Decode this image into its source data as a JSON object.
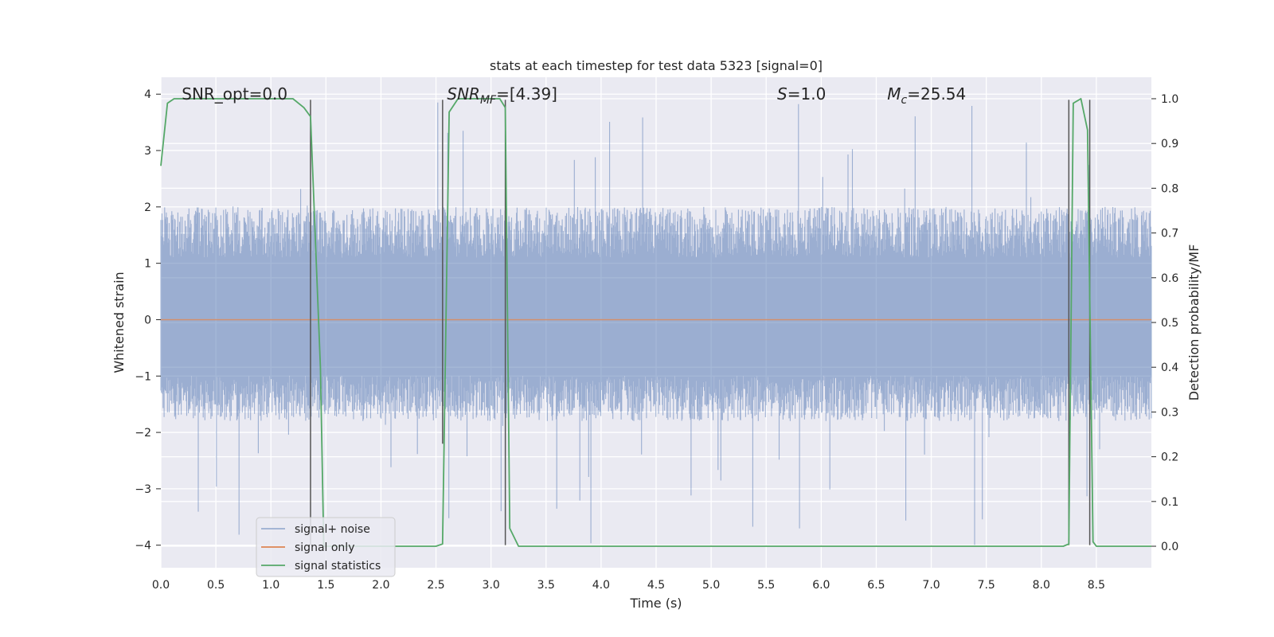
{
  "chart_data": {
    "type": "line",
    "title": "stats at each timestep for test data 5323 [signal=0]",
    "xlabel": "Time (s)",
    "ylabel": "Whitened strain",
    "ylabel_right": "Detection probability/MF",
    "xlim": [
      0.0,
      9.0
    ],
    "ylim": [
      -4.4,
      4.3
    ],
    "ylim_right": [
      -0.048,
      1.048
    ],
    "xticks": [
      0.0,
      0.5,
      1.0,
      1.5,
      2.0,
      2.5,
      3.0,
      3.5,
      4.0,
      4.5,
      5.0,
      5.5,
      6.0,
      6.5,
      7.0,
      7.5,
      8.0,
      8.5
    ],
    "yticks": [
      -4,
      -3,
      -2,
      -1,
      0,
      1,
      2,
      3,
      4
    ],
    "yticks_right": [
      0.0,
      0.1,
      0.2,
      0.3,
      0.4,
      0.5,
      0.6,
      0.7,
      0.8,
      0.9,
      1.0
    ],
    "annotations": [
      {
        "text": "SNR_opt=0.0",
        "x": 0.19,
        "y": 4.0
      },
      {
        "text": "SNR",
        "sub": "MF",
        "suffix": "=[4.39]",
        "italic": true,
        "x": 2.6,
        "y": 4.0
      },
      {
        "text": "S",
        "suffix": "=1.0",
        "italic": true,
        "x": 5.6,
        "y": 4.0
      },
      {
        "text": "M",
        "sub": "c",
        "suffix": "=25.54",
        "italic": true,
        "x": 6.6,
        "y": 4.0
      }
    ],
    "vlines": [
      {
        "x": 1.36,
        "ymin": -4.0,
        "ymax": 3.9
      },
      {
        "x": 2.56,
        "ymin": -2.2,
        "ymax": 3.9
      },
      {
        "x": 3.13,
        "ymin": -4.0,
        "ymax": 3.9
      },
      {
        "x": 8.25,
        "ymin": -4.0,
        "ymax": 3.9
      },
      {
        "x": 8.44,
        "ymin": -4.0,
        "ymax": 3.9
      }
    ],
    "series": [
      {
        "name": "signal+ noise",
        "color": "#4c72b0",
        "alpha": 0.5,
        "axis": "left",
        "x_range": [
          0.0,
          9.0
        ],
        "samples": 1800,
        "envelope_approx": {
          "typical_max": 2.0,
          "typical_min": -1.8,
          "peak_max": 3.9,
          "peak_min": -4.0
        }
      },
      {
        "name": "signal only",
        "color": "#dd8452",
        "axis": "left",
        "x": [
          0.0,
          9.0
        ],
        "y": [
          0.0,
          0.0
        ]
      },
      {
        "name": "signal statistics",
        "color": "#55a868",
        "axis": "right",
        "x": [
          0.0,
          0.06,
          0.12,
          0.5,
          1.0,
          1.2,
          1.3,
          1.36,
          1.45,
          1.48,
          1.55,
          2.0,
          2.5,
          2.56,
          2.62,
          2.7,
          2.8,
          3.0,
          3.08,
          3.13,
          3.17,
          3.25,
          3.5,
          4.0,
          5.0,
          6.0,
          7.0,
          8.0,
          8.2,
          8.25,
          8.29,
          8.36,
          8.42,
          8.47,
          8.5,
          9.0
        ],
        "y": [
          0.85,
          0.99,
          1.0,
          1.0,
          1.0,
          1.0,
          0.98,
          0.96,
          0.4,
          0.0,
          0.0,
          0.0,
          0.0,
          0.005,
          0.97,
          1.0,
          1.0,
          1.0,
          1.0,
          0.98,
          0.04,
          0.0,
          0.0,
          0.0,
          0.0,
          0.0,
          0.0,
          0.0,
          0.0,
          0.005,
          0.99,
          1.0,
          0.93,
          0.01,
          0.0,
          0.0
        ]
      }
    ],
    "legend": {
      "placement": "lower-left",
      "entries": [
        "signal+ noise",
        "signal only",
        "signal statistics"
      ]
    },
    "grid": true,
    "style": {
      "background": "#eaeaf2",
      "grid_color": "#ffffff",
      "vline_color": "#555555"
    }
  }
}
